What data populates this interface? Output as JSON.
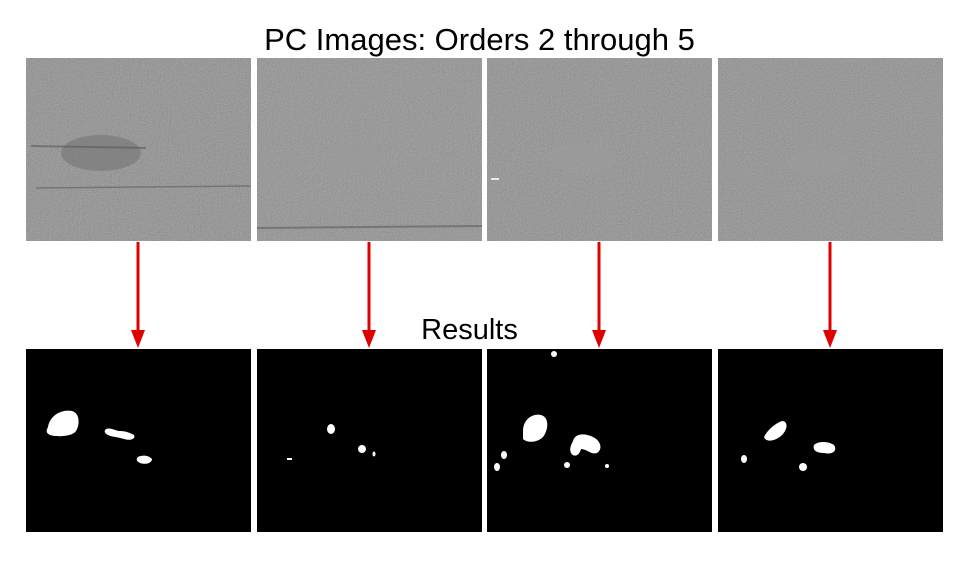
{
  "title": "PC Images: Orders 2 through 5",
  "results_label": "Results",
  "colors": {
    "arrow": "#e00000",
    "pc_background": "#858585",
    "result_background": "#000000",
    "blob": "#ffffff"
  },
  "pc_images": [
    {
      "name": "pc-order-2"
    },
    {
      "name": "pc-order-3"
    },
    {
      "name": "pc-order-4"
    },
    {
      "name": "pc-order-5"
    }
  ],
  "result_images": [
    {
      "name": "result-order-2"
    },
    {
      "name": "result-order-3"
    },
    {
      "name": "result-order-4"
    },
    {
      "name": "result-order-5"
    }
  ]
}
